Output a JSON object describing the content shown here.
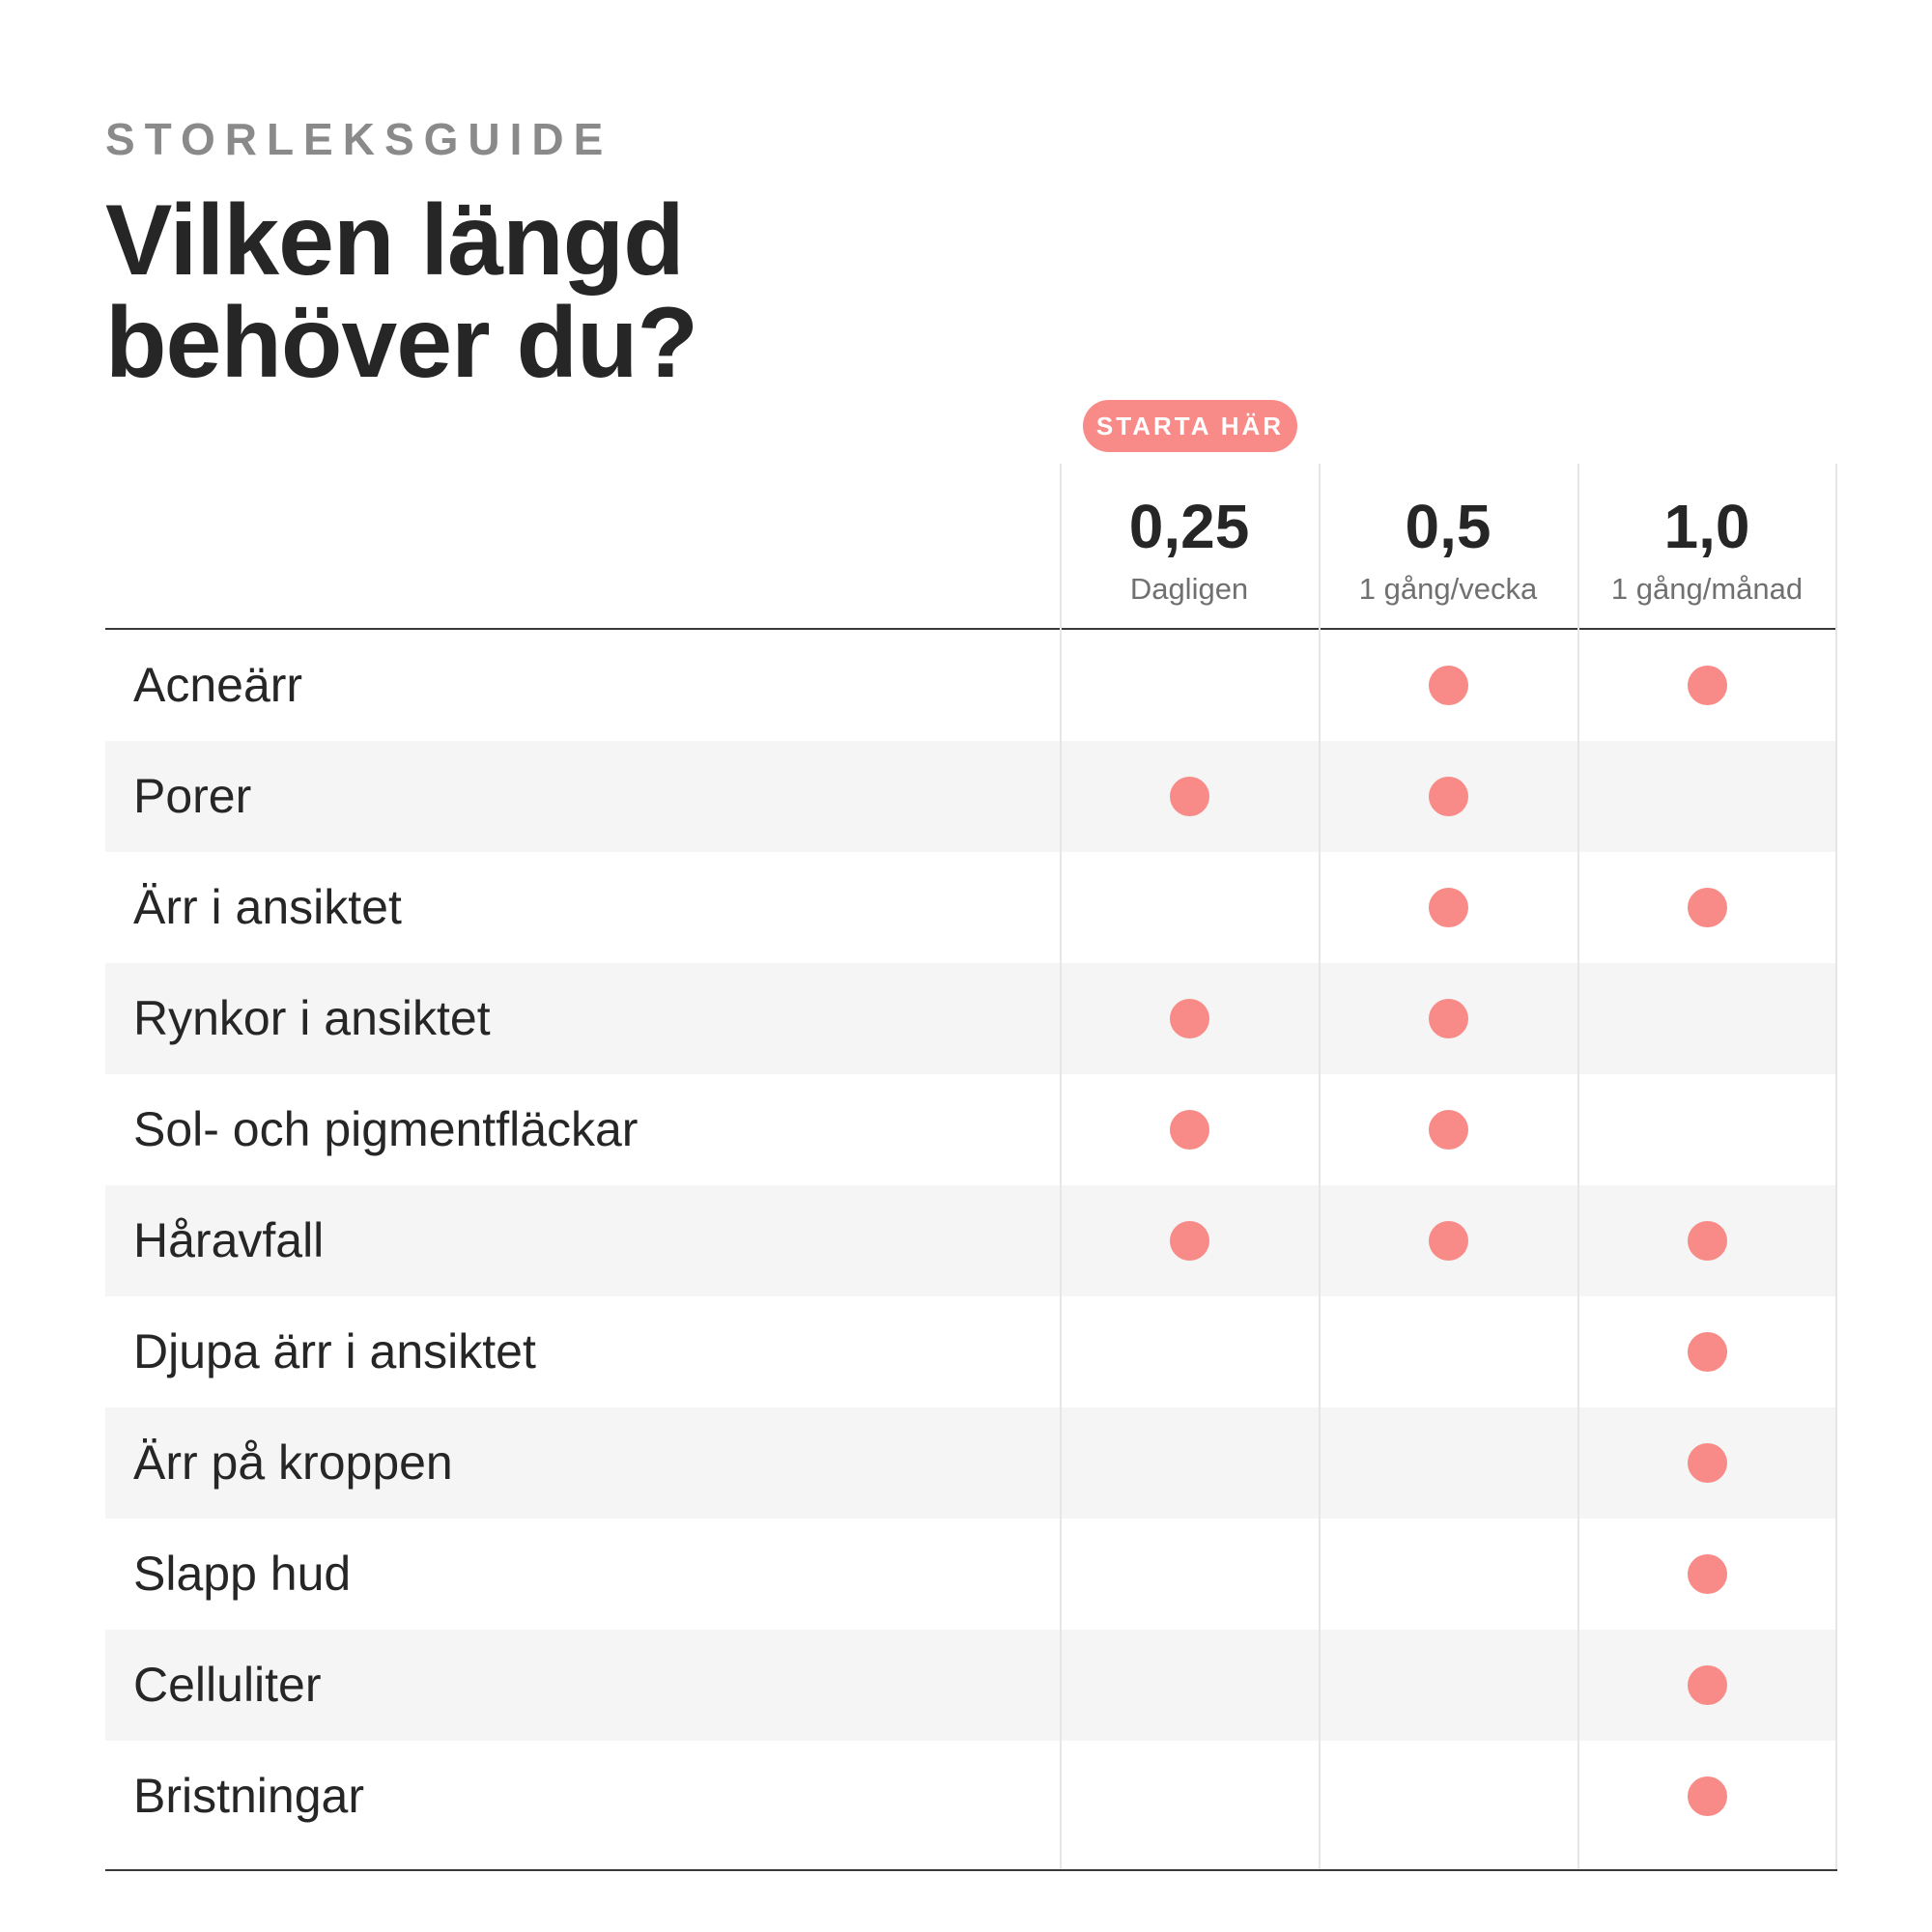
{
  "header": {
    "eyebrow": "STORLEKSGUIDE",
    "title_line1": "Vilken längd",
    "title_line2": "behöver du?"
  },
  "badge": {
    "label": "STARTA HÄR",
    "color": "#f88a88"
  },
  "columns": [
    {
      "length": "0,25",
      "frequency": "Dagligen"
    },
    {
      "length": "0,5",
      "frequency": "1 gång/vecka"
    },
    {
      "length": "1,0",
      "frequency": "1 gång/månad"
    }
  ],
  "rows": [
    {
      "label": "Acneärr",
      "marks": [
        false,
        true,
        true
      ]
    },
    {
      "label": "Porer",
      "marks": [
        true,
        true,
        false
      ]
    },
    {
      "label": "Ärr i ansiktet",
      "marks": [
        false,
        true,
        true
      ]
    },
    {
      "label": "Rynkor i ansiktet",
      "marks": [
        true,
        true,
        false
      ]
    },
    {
      "label": "Sol- och pigmentfläckar",
      "marks": [
        true,
        true,
        false
      ]
    },
    {
      "label": "Håravfall",
      "marks": [
        true,
        true,
        true
      ]
    },
    {
      "label": "Djupa ärr i ansiktet",
      "marks": [
        false,
        false,
        true
      ]
    },
    {
      "label": "Ärr på kroppen",
      "marks": [
        false,
        false,
        true
      ]
    },
    {
      "label": "Slapp hud",
      "marks": [
        false,
        false,
        true
      ]
    },
    {
      "label": "Celluliter",
      "marks": [
        false,
        false,
        true
      ]
    },
    {
      "label": "Bristningar",
      "marks": [
        false,
        false,
        true
      ]
    }
  ],
  "colors": {
    "accent": "#f88a88",
    "row_alt": "#f5f5f5",
    "text": "#262626"
  }
}
